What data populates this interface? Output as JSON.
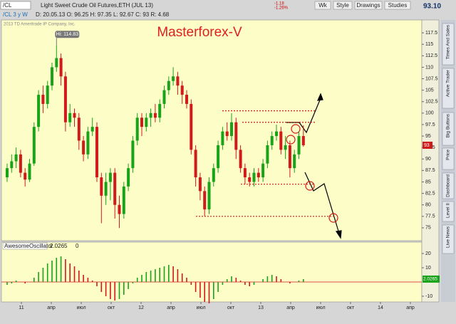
{
  "toolbar": {
    "symbol": "/CL",
    "description": "Light Sweet Crude Oil Futures,ETH (JUL 13)",
    "change": "-1.18",
    "change_pct": "-1.26%",
    "buttons": [
      "Wk",
      "Style",
      "Drawings",
      "Studies"
    ],
    "last_price": "93.10"
  },
  "info": {
    "chart_label": "/CL 3 y W",
    "ohlc": "D: 20.05.13  O: 96.25  H: 97.35  L: 92.67  C: 93  R: 4.68",
    "copyright": "2013 TD Ameritrade IP Company, Inc."
  },
  "sidebar": {
    "tabs": [
      "Times And Sales",
      "Active Trader",
      "Big Buttons",
      "Price",
      "Dashboard",
      "Level II",
      "Live News"
    ]
  },
  "chart_data": [
    {
      "type": "candlestick",
      "title": "Masterforex-V",
      "high_label": "Hi: 114.83",
      "open": [
        86,
        88,
        89.5,
        91,
        87,
        85.5,
        89,
        97,
        104,
        102,
        106,
        110,
        112,
        108,
        98,
        100,
        99,
        94,
        91,
        96,
        97,
        86,
        82,
        85,
        87,
        80,
        78,
        84,
        88,
        94,
        99,
        97,
        99,
        100,
        99,
        102,
        105,
        107,
        108,
        106,
        104,
        102,
        92,
        86,
        83,
        79,
        85,
        88,
        93,
        96,
        95,
        98,
        92,
        88,
        86,
        85,
        87,
        86,
        89,
        93,
        95,
        96,
        92,
        93,
        88,
        91,
        95
      ],
      "high": [
        89,
        91,
        92.5,
        92,
        88,
        90,
        98,
        105,
        106,
        107,
        111,
        114.83,
        113,
        109,
        102,
        101,
        100,
        95,
        97,
        99,
        98,
        87,
        87,
        88,
        88,
        82,
        85,
        89,
        95,
        100,
        100,
        100,
        101,
        102,
        103,
        106,
        108,
        110,
        109,
        107,
        105,
        103,
        93,
        87,
        84,
        86,
        89,
        94,
        97,
        98,
        100,
        99,
        93,
        89,
        87,
        88,
        88,
        90,
        94,
        96,
        97.5,
        97,
        95,
        94,
        92,
        96,
        97.35
      ],
      "low": [
        85,
        87,
        88,
        86,
        84,
        85,
        88.5,
        96,
        100,
        101,
        105,
        109,
        106,
        96,
        97,
        97,
        92,
        89.5,
        90,
        95,
        85,
        76,
        80,
        81,
        77,
        74.95,
        77,
        83,
        87,
        93,
        95,
        96,
        97,
        98,
        98,
        101,
        104,
        106,
        104,
        102,
        101,
        91,
        84,
        81,
        77.5,
        78,
        84,
        87,
        92,
        94,
        94,
        90,
        87,
        84.5,
        84,
        84,
        85,
        85,
        88,
        92,
        94,
        91,
        90,
        86,
        87,
        90,
        92.67
      ],
      "close": [
        88,
        89.5,
        91,
        87,
        85.5,
        89,
        97,
        104,
        102,
        106,
        110,
        112,
        108,
        98,
        100,
        99,
        94,
        91,
        96,
        97,
        86,
        82,
        85,
        87,
        80,
        78,
        84,
        88,
        94,
        99,
        97,
        99,
        100,
        99,
        102,
        105,
        107,
        108,
        106,
        104,
        102,
        92,
        86,
        83,
        79,
        85,
        88,
        93,
        96,
        95,
        98,
        92,
        88,
        86,
        85,
        87,
        86,
        89,
        93,
        95,
        96,
        92,
        93,
        88,
        91,
        95,
        93
      ],
      "up_color": "#19a319",
      "down_color": "#d11a1a",
      "current_price": 93,
      "levels": [
        100.5,
        98,
        84.5,
        77.5
      ],
      "ylim": [
        72.5,
        120
      ],
      "yticks": [
        75,
        77.5,
        80,
        82.5,
        85,
        87.5,
        90,
        92.5,
        95,
        97.5,
        100,
        102.5,
        105,
        107.5,
        110,
        112.5,
        115,
        117.5
      ],
      "x_labels": [
        "11",
        "апр",
        "июл",
        "окт",
        "12",
        "апр",
        "июл",
        "окт",
        "13",
        "апр",
        "июл",
        "окт",
        "14",
        "апр"
      ]
    },
    {
      "type": "histogram_oscillator",
      "title": "AwesomeOscillator",
      "value_label": "2.0265",
      "zero_label": "0",
      "values": [
        -2,
        -1,
        1,
        0,
        -1,
        0,
        3,
        7,
        10,
        13,
        15,
        17,
        18,
        16,
        13,
        11,
        8,
        5,
        3,
        1,
        -3,
        -7,
        -10,
        -12,
        -13,
        -12,
        -9,
        -5,
        -1,
        3,
        5,
        7,
        8,
        9,
        10,
        11,
        12,
        11,
        9,
        6,
        3,
        -2,
        -7,
        -11,
        -14,
        -15,
        -12,
        -7,
        -2,
        2,
        4,
        3,
        1,
        -2,
        -3,
        -2,
        0,
        2,
        4,
        5,
        4,
        2,
        0,
        -1,
        0,
        1,
        2.0265
      ],
      "up_color": "#19a319",
      "down_color": "#d11a1a",
      "ylim": [
        -14,
        26
      ],
      "yticks": [
        20,
        10,
        -10
      ]
    }
  ]
}
